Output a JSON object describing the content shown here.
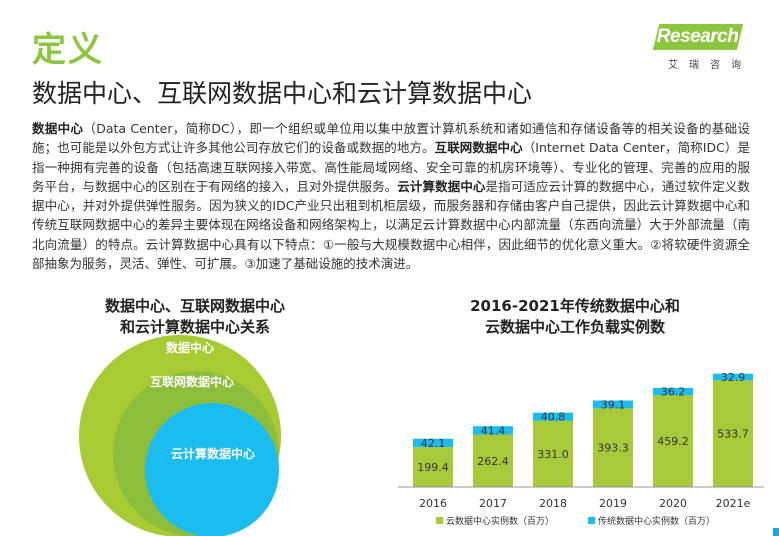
{
  "header": {
    "section_label": "定义",
    "title": "数据中心、互联网数据中心和云计算数据中心",
    "logo_text": "iResearch",
    "logo_sub": "艾瑞咨询"
  },
  "body": {
    "p1_bold": "数据中心",
    "p1": "（Data Center，简称DC），即一个组织或单位用以集中放置计算机系统和诸如通信和存储设备等的相关设备的基础设施；也可能是以外包方式让许多其他公司存放它们的设备或数据的地方。",
    "p2_bold": "互联网数据中心",
    "p2": "（Internet Data Center，简称IDC）是指一种拥有完善的设备（包括高速互联网接入带宽、高性能局域网络、安全可靠的机房环境等）、专业化的管理、完善的应用的服务平台，与数据中心的区别在于有网络的接入，且对外提供服务。",
    "p3_bold": "云计算数据中心",
    "p3": "是指可适应云计算的数据中心，通过软件定义数据中心，并对外提供弹性服务。因为狭义的IDC产业只出租到机柜层级，而服务器和存储由客户自己提供，因此云计算数据中心和传统互联网数据中心的差异主要体现在网络设备和网络架构上，以满足云计算数据中心内部流量（东西向流量）大于外部流量（南北向流量）的特点。云计算数据中心具有以下特点：①一般与大规模数据中心相伴，因此细节的优化意义重大。②将软硬件资源全部抽象为服务，灵活、弹性、可扩展。③加速了基础设施的技术演进。"
  },
  "venn": {
    "title_line1": "数据中心、互联网数据中心",
    "title_line2": "和云计算数据中心关系",
    "outer_label": "数据中心",
    "middle_label": "互联网数据中心",
    "inner_label": "云计算数据中心",
    "colors": {
      "outer": "#a8cb33",
      "middle": "#8cbe3c",
      "inner": "#1bbcf0"
    }
  },
  "chart_data": {
    "type": "bar",
    "stacked": true,
    "title_line1": "2016-2021年传统数据中心和",
    "title_line2": "云数据中心工作负载实例数",
    "categories": [
      "2016",
      "2017",
      "2018",
      "2019",
      "2020",
      "2021e"
    ],
    "series": [
      {
        "name": "云数据中心实例数（百万）",
        "color": "#a8c93a",
        "values": [
          199.4,
          262.4,
          331.0,
          393.3,
          459.2,
          533.7
        ],
        "labels": [
          "199.4",
          "262.4",
          "331.0",
          "393.3",
          "459.2",
          "533.7"
        ]
      },
      {
        "name": "传统数据中心实例数（百万）",
        "color": "#1bbcf0",
        "values": [
          42.1,
          41.4,
          40.8,
          39.1,
          36.2,
          32.9
        ],
        "labels": [
          "42.1",
          "41.4",
          "40.8",
          "39.1",
          "36.2",
          "32.9"
        ]
      }
    ],
    "legend_position": "bottom",
    "grid": false
  }
}
